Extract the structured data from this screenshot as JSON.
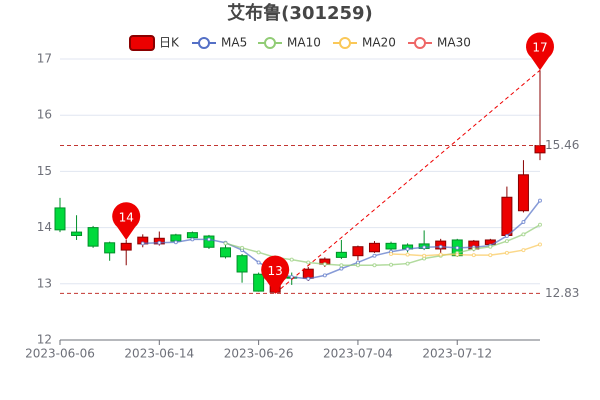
{
  "chart_data": {
    "type": "candlestick",
    "title": "艾布鲁(301259)",
    "candle_name": "日K",
    "up_color": "#ec0000",
    "up_border": "#8a0000",
    "down_color": "#00da3c",
    "down_border": "#008f28",
    "categories": [
      "2023-06-06",
      null,
      null,
      null,
      null,
      null,
      "2023-06-14",
      null,
      null,
      null,
      null,
      null,
      "2023-06-26",
      null,
      null,
      null,
      null,
      null,
      "2023-07-04",
      null,
      null,
      null,
      null,
      null,
      "2023-07-12",
      null,
      null,
      null,
      null,
      null
    ],
    "candles": [
      {
        "open": 14.35,
        "high": 14.53,
        "low": 13.92,
        "close": 13.96
      },
      {
        "open": 13.92,
        "high": 14.22,
        "low": 13.78,
        "close": 13.86
      },
      {
        "open": 14.0,
        "high": 14.03,
        "low": 13.64,
        "close": 13.67
      },
      {
        "open": 13.73,
        "high": 13.75,
        "low": 13.41,
        "close": 13.55
      },
      {
        "open": 13.6,
        "high": 13.78,
        "low": 13.33,
        "close": 13.72
      },
      {
        "open": 13.71,
        "high": 13.88,
        "low": 13.65,
        "close": 13.83
      },
      {
        "open": 13.71,
        "high": 13.93,
        "low": 13.68,
        "close": 13.81
      },
      {
        "open": 13.87,
        "high": 13.89,
        "low": 13.74,
        "close": 13.76
      },
      {
        "open": 13.91,
        "high": 13.93,
        "low": 13.8,
        "close": 13.82
      },
      {
        "open": 13.85,
        "high": 13.87,
        "low": 13.62,
        "close": 13.65
      },
      {
        "open": 13.64,
        "high": 13.7,
        "low": 13.45,
        "close": 13.48
      },
      {
        "open": 13.5,
        "high": 13.53,
        "low": 13.02,
        "close": 13.21
      },
      {
        "open": 13.17,
        "high": 13.2,
        "low": 12.86,
        "close": 12.87
      },
      {
        "open": 12.85,
        "high": 13.2,
        "low": 12.83,
        "close": 13.14
      },
      {
        "open": 13.12,
        "high": 13.2,
        "low": 12.98,
        "close": 13.1
      },
      {
        "open": 13.1,
        "high": 13.3,
        "low": 13.05,
        "close": 13.26
      },
      {
        "open": 13.35,
        "high": 13.47,
        "low": 13.3,
        "close": 13.44
      },
      {
        "open": 13.56,
        "high": 13.78,
        "low": 13.44,
        "close": 13.47
      },
      {
        "open": 13.5,
        "high": 13.68,
        "low": 13.42,
        "close": 13.66
      },
      {
        "open": 13.57,
        "high": 13.76,
        "low": 13.55,
        "close": 13.72
      },
      {
        "open": 13.72,
        "high": 13.75,
        "low": 13.57,
        "close": 13.62
      },
      {
        "open": 13.69,
        "high": 13.72,
        "low": 13.56,
        "close": 13.62
      },
      {
        "open": 13.71,
        "high": 13.95,
        "low": 13.6,
        "close": 13.63
      },
      {
        "open": 13.62,
        "high": 13.8,
        "low": 13.55,
        "close": 13.76
      },
      {
        "open": 13.78,
        "high": 13.8,
        "low": 13.48,
        "close": 13.5
      },
      {
        "open": 13.62,
        "high": 13.78,
        "low": 13.58,
        "close": 13.76
      },
      {
        "open": 13.7,
        "high": 13.8,
        "low": 13.65,
        "close": 13.78
      },
      {
        "open": 13.86,
        "high": 14.73,
        "low": 13.83,
        "close": 14.54
      },
      {
        "open": 14.3,
        "high": 15.2,
        "low": 14.27,
        "close": 14.94
      },
      {
        "open": 15.33,
        "high": 16.8,
        "low": 15.2,
        "close": 15.46
      }
    ],
    "series": [
      {
        "name": "MA5",
        "color": "#5470c6",
        "values": [
          null,
          null,
          null,
          null,
          null,
          13.72,
          13.73,
          13.74,
          13.79,
          13.79,
          13.73,
          13.6,
          13.38,
          13.22,
          13.12,
          13.09,
          13.15,
          13.27,
          13.38,
          13.5,
          13.57,
          13.62,
          13.65,
          13.66,
          13.64,
          13.65,
          13.68,
          13.85,
          14.1,
          14.48
        ]
      },
      {
        "name": "MA10",
        "color": "#91cc75",
        "values": [
          null,
          null,
          null,
          null,
          null,
          null,
          null,
          null,
          null,
          null,
          13.72,
          13.64,
          13.56,
          13.47,
          13.43,
          13.38,
          13.35,
          13.33,
          13.33,
          13.33,
          13.34,
          13.36,
          13.45,
          13.5,
          13.55,
          13.62,
          13.66,
          13.76,
          13.88,
          14.05
        ]
      },
      {
        "name": "MA20",
        "color": "#fac858",
        "values": [
          null,
          null,
          null,
          null,
          null,
          null,
          null,
          null,
          null,
          null,
          null,
          null,
          null,
          null,
          null,
          null,
          null,
          null,
          null,
          null,
          13.53,
          13.52,
          13.5,
          13.52,
          13.52,
          13.51,
          13.51,
          13.55,
          13.6,
          13.7
        ]
      },
      {
        "name": "MA30",
        "color": "#ee6666"
      }
    ],
    "pins": [
      {
        "candle": 4,
        "label": "14"
      },
      {
        "candle": 13,
        "label": "13"
      },
      {
        "candle": 29,
        "label": "17"
      }
    ],
    "hlines": [
      15.46,
      12.83
    ],
    "ylim": [
      12,
      17
    ],
    "yticks": [
      12,
      13,
      14,
      15,
      16,
      17
    ],
    "grid": true
  }
}
